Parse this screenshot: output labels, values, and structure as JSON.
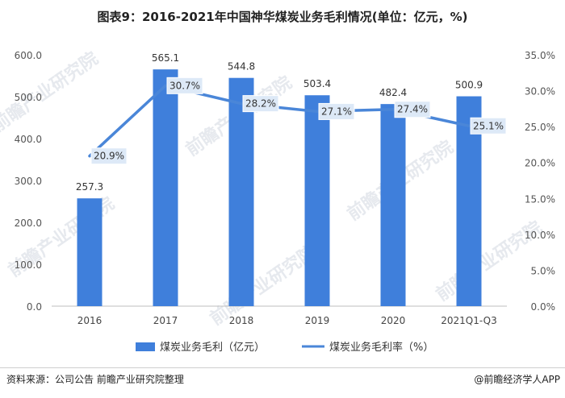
{
  "chart_data": {
    "type": "bar",
    "title": "图表9：2016-2021年中国神华煤炭业务毛利情况(单位：亿元，%)",
    "categories": [
      "2016",
      "2017",
      "2018",
      "2019",
      "2020",
      "2021Q1-Q3"
    ],
    "series": [
      {
        "name": "煤炭业务毛利（亿元）",
        "type": "bar",
        "axis": "left",
        "color": "#3f7fdb",
        "values": [
          257.3,
          565.1,
          544.8,
          503.4,
          482.4,
          500.9
        ],
        "labels": [
          "257.3",
          "565.1",
          "544.8",
          "503.4",
          "482.4",
          "500.9"
        ]
      },
      {
        "name": "煤炭业务毛利率（%）",
        "type": "line",
        "axis": "right",
        "color": "#4a86d8",
        "values": [
          20.9,
          30.7,
          28.2,
          27.1,
          27.4,
          25.1
        ],
        "labels": [
          "20.9%",
          "30.7%",
          "28.2%",
          "27.1%",
          "27.4%",
          "25.1%"
        ]
      }
    ],
    "y_left": {
      "ylim": [
        0,
        600
      ],
      "ticks": [
        0,
        100,
        200,
        300,
        400,
        500,
        600
      ],
      "tick_labels": [
        "0.0",
        "100.0",
        "200.0",
        "300.0",
        "400.0",
        "500.0",
        "600.0"
      ]
    },
    "y_right": {
      "ylim": [
        0,
        35
      ],
      "ticks": [
        0,
        5,
        10,
        15,
        20,
        25,
        30,
        35
      ],
      "tick_labels": [
        "0.0%",
        "5.0%",
        "10.0%",
        "15.0%",
        "20.0%",
        "25.0%",
        "30.0%",
        "35.0%"
      ]
    },
    "grid": false,
    "legend_position": "bottom"
  },
  "footer": {
    "source": "资料来源：公司公告 前瞻产业研究院整理",
    "credit": "@前瞻经济学人APP"
  },
  "watermark": "前瞻产业研究院"
}
